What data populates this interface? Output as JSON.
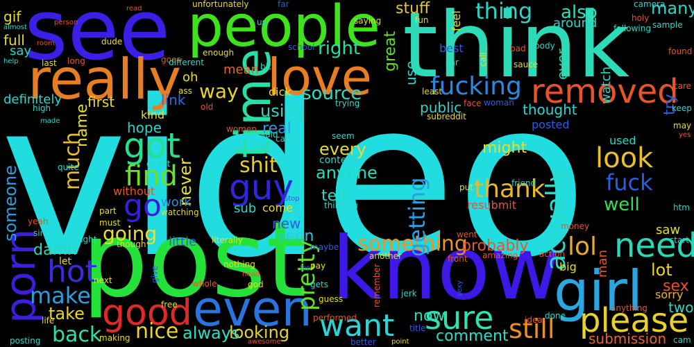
{
  "word_cloud": {
    "background": "#000000",
    "words": [
      {
        "text": "video"
      },
      {
        "text": "see"
      },
      {
        "text": "think"
      },
      {
        "text": "people"
      },
      {
        "text": "know"
      },
      {
        "text": "post"
      },
      {
        "text": "really"
      },
      {
        "text": "love"
      },
      {
        "text": "time"
      },
      {
        "text": "girl"
      },
      {
        "text": "even"
      },
      {
        "text": "porn"
      },
      {
        "text": "removed"
      },
      {
        "text": "need"
      },
      {
        "text": "please"
      },
      {
        "text": "got"
      },
      {
        "text": "guy"
      },
      {
        "text": "good"
      },
      {
        "text": "want"
      },
      {
        "text": "sure"
      },
      {
        "text": "hot"
      },
      {
        "text": "look"
      },
      {
        "text": "find"
      },
      {
        "text": "fucking"
      },
      {
        "text": "thing"
      },
      {
        "text": "go"
      },
      {
        "text": "shit"
      },
      {
        "text": "still"
      },
      {
        "text": "make"
      },
      {
        "text": "something"
      },
      {
        "text": "thank"
      },
      {
        "text": "fuck"
      },
      {
        "text": "actually"
      },
      {
        "text": "getting"
      },
      {
        "text": "pretty"
      },
      {
        "text": "back"
      },
      {
        "text": "nice"
      },
      {
        "text": "lol"
      },
      {
        "text": "right"
      },
      {
        "text": "source"
      },
      {
        "text": "looking"
      },
      {
        "text": "much"
      },
      {
        "text": "someone"
      },
      {
        "text": "also"
      },
      {
        "text": "way"
      },
      {
        "text": "going"
      },
      {
        "text": "well"
      },
      {
        "text": "thought"
      },
      {
        "text": "probably"
      },
      {
        "text": "might"
      },
      {
        "text": "anyone"
      },
      {
        "text": "never"
      },
      {
        "text": "take"
      },
      {
        "text": "damn"
      },
      {
        "text": "lot"
      },
      {
        "text": "many"
      },
      {
        "text": "now"
      },
      {
        "text": "every"
      },
      {
        "text": "stuff"
      },
      {
        "text": "great"
      },
      {
        "text": "always"
      },
      {
        "text": "comment"
      },
      {
        "text": "submission"
      },
      {
        "text": "seen"
      },
      {
        "text": "using"
      },
      {
        "text": "real"
      },
      {
        "text": "first"
      },
      {
        "text": "ever"
      },
      {
        "text": "link"
      },
      {
        "text": "public"
      },
      {
        "text": "tell"
      },
      {
        "text": "hope"
      },
      {
        "text": "sex"
      },
      {
        "text": "name"
      },
      {
        "text": "try"
      },
      {
        "text": "mean"
      },
      {
        "text": "new"
      },
      {
        "text": "two"
      },
      {
        "text": "use"
      },
      {
        "text": "say"
      },
      {
        "text": "full"
      },
      {
        "text": "gif"
      },
      {
        "text": "definitely"
      },
      {
        "text": "work"
      },
      {
        "text": "sub"
      },
      {
        "text": "come"
      },
      {
        "text": "oh"
      },
      {
        "text": "watch"
      },
      {
        "text": "best"
      },
      {
        "text": "around"
      },
      {
        "text": "used"
      },
      {
        "text": "posted"
      },
      {
        "text": "saw"
      },
      {
        "text": "man"
      },
      {
        "text": "resubmit"
      },
      {
        "text": "sorry"
      },
      {
        "text": "let"
      },
      {
        "text": "little"
      },
      {
        "text": "kind"
      },
      {
        "text": "without"
      },
      {
        "text": "content"
      },
      {
        "text": "big"
      },
      {
        "text": "dick"
      },
      {
        "text": "feel"
      },
      {
        "text": "fun"
      },
      {
        "text": "far"
      },
      {
        "text": "unfortunately"
      },
      {
        "text": "saying"
      },
      {
        "text": "camera"
      },
      {
        "text": "holy"
      },
      {
        "text": "following"
      },
      {
        "text": "sample"
      },
      {
        "text": "read"
      },
      {
        "text": "person"
      },
      {
        "text": "almost"
      },
      {
        "text": "room"
      },
      {
        "text": "dude"
      },
      {
        "text": "goes"
      },
      {
        "text": "school"
      },
      {
        "text": "us"
      },
      {
        "text": "enough"
      },
      {
        "text": "long"
      },
      {
        "text": "different"
      },
      {
        "text": "help"
      },
      {
        "text": "last"
      },
      {
        "text": "bit"
      },
      {
        "text": "car"
      },
      {
        "text": "call"
      },
      {
        "text": "bad"
      },
      {
        "text": "body"
      },
      {
        "text": "sauce"
      },
      {
        "text": "found"
      },
      {
        "text": "care"
      },
      {
        "text": "keep"
      },
      {
        "text": "may"
      },
      {
        "text": "yes"
      },
      {
        "text": "htm"
      },
      {
        "text": "cam"
      },
      {
        "text": "ass"
      },
      {
        "text": "old"
      },
      {
        "text": "high"
      },
      {
        "text": "made"
      },
      {
        "text": "trying"
      },
      {
        "text": "least"
      },
      {
        "text": "face"
      },
      {
        "text": "woman"
      },
      {
        "text": "subreddit"
      },
      {
        "text": "women"
      },
      {
        "text": "said"
      },
      {
        "text": "came"
      },
      {
        "text": "else"
      },
      {
        "text": "seem"
      },
      {
        "text": "direct"
      },
      {
        "text": "quite"
      },
      {
        "text": "friend"
      },
      {
        "text": "put"
      },
      {
        "text": "stop"
      },
      {
        "text": "thinking"
      },
      {
        "text": "part"
      },
      {
        "text": "watching"
      },
      {
        "text": "must"
      },
      {
        "text": "yeah"
      },
      {
        "text": "since"
      },
      {
        "text": "caught"
      },
      {
        "text": "though"
      },
      {
        "text": "literally"
      },
      {
        "text": "maybe"
      },
      {
        "text": "went"
      },
      {
        "text": "money"
      },
      {
        "text": "start"
      },
      {
        "text": "nothing"
      },
      {
        "text": "another"
      },
      {
        "text": "pay"
      },
      {
        "text": "front"
      },
      {
        "text": "amazing"
      },
      {
        "text": "action"
      },
      {
        "text": "top"
      },
      {
        "text": "head"
      },
      {
        "text": "next"
      },
      {
        "text": "give"
      },
      {
        "text": "free"
      },
      {
        "text": "whole"
      },
      {
        "text": "god"
      },
      {
        "text": "gets"
      },
      {
        "text": "remember"
      },
      {
        "text": "sexy"
      },
      {
        "text": "jerk"
      },
      {
        "text": "guess"
      },
      {
        "text": "idea"
      },
      {
        "text": "done"
      },
      {
        "text": "anything"
      },
      {
        "text": "life"
      },
      {
        "text": "performed"
      },
      {
        "text": "title"
      },
      {
        "text": "making"
      },
      {
        "text": "posting"
      },
      {
        "text": "awesome"
      },
      {
        "text": "better"
      },
      {
        "text": "point"
      }
    ]
  }
}
